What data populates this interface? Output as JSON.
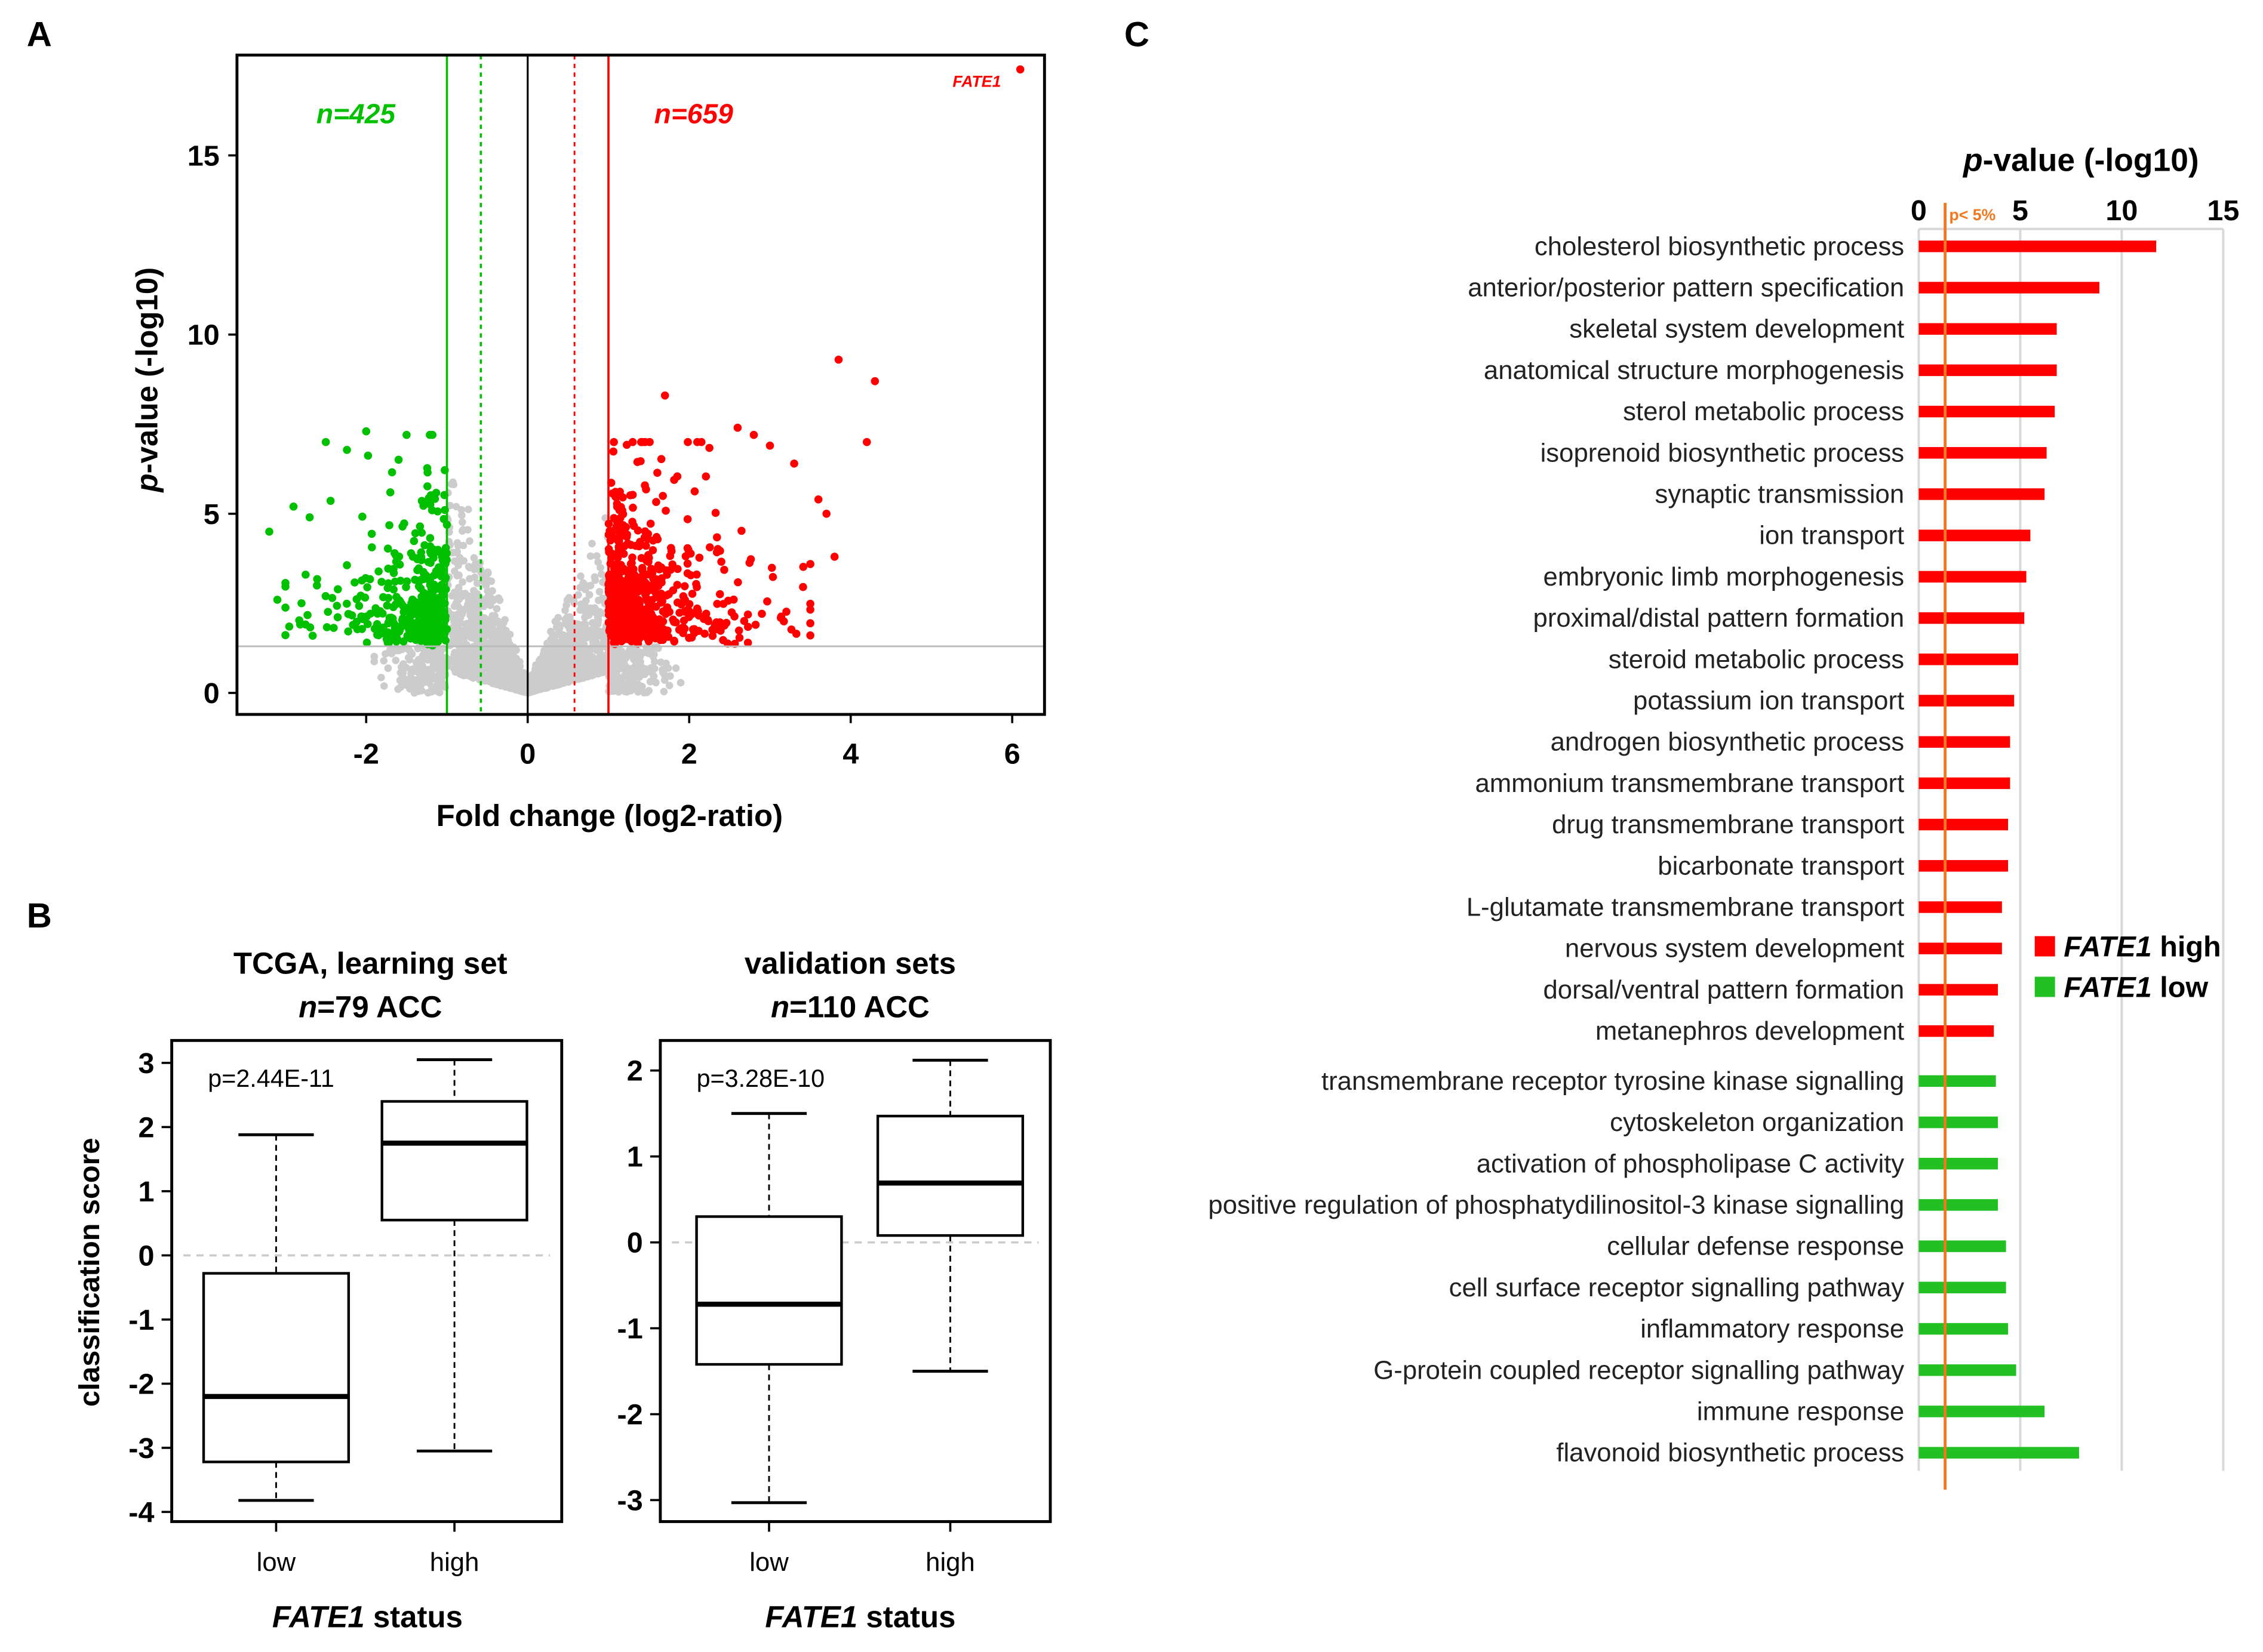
{
  "panels": {
    "a": "A",
    "b": "B",
    "c": "C"
  },
  "chart_data": [
    {
      "type": "scatter",
      "id": "volcano",
      "xlabel": "Fold change (log2-ratio)",
      "ylabel_italic": "p",
      "ylabel_rest": "-value (-log10)",
      "xlim": [
        -3.6,
        6.4
      ],
      "ylim": [
        -0.6,
        17.8
      ],
      "xticks": [
        -2,
        0,
        2,
        4,
        6
      ],
      "yticks": [
        0,
        5,
        10,
        15
      ],
      "thresholds": {
        "fc_solid": 1,
        "fc_dotted": 0.58,
        "pvalue_line": 1.3
      },
      "down_label": "n=425",
      "up_label": "n=659",
      "n_down": 425,
      "n_up": 659,
      "highlight": {
        "label": "FATE1",
        "x": 6.1,
        "y": 17.4
      },
      "outliers_up": [
        [
          3.85,
          9.3
        ],
        [
          4.3,
          8.7
        ],
        [
          1.7,
          8.3
        ],
        [
          4.2,
          7.0
        ],
        [
          2.6,
          7.4
        ],
        [
          2.8,
          7.2
        ],
        [
          3.8,
          3.8
        ],
        [
          3.6,
          5.4
        ],
        [
          3.7,
          5.0
        ],
        [
          3.3,
          6.4
        ],
        [
          2.1,
          7.0
        ],
        [
          1.3,
          7.0
        ],
        [
          3.0,
          6.9
        ]
      ],
      "outliers_down": [
        [
          -2.0,
          7.3
        ],
        [
          -2.5,
          7.0
        ],
        [
          -1.5,
          7.2
        ],
        [
          -3.2,
          4.5
        ],
        [
          -3.1,
          2.6
        ],
        [
          -2.9,
          5.2
        ],
        [
          -2.7,
          4.9
        ],
        [
          -2.75,
          3.3
        ]
      ],
      "colors": {
        "down": "#00c000",
        "up": "#ff0000",
        "ns": "#cccccc"
      }
    },
    {
      "type": "box",
      "id": "tcga",
      "title1": "TCGA, learning set",
      "title2_italic": "n",
      "title2_rest": "=79 ACC",
      "pvalue": "p=2.44E-11",
      "ylabel": "classification score",
      "xlabel_italic": "FATE1",
      "xlabel_rest": " status",
      "ylim": [
        -4.15,
        3.35
      ],
      "yticks": [
        3,
        2,
        1,
        0,
        -1,
        -2,
        -3,
        -4
      ],
      "groups": [
        {
          "name": "low",
          "whisker_low": -3.82,
          "q1": -3.22,
          "median": -2.2,
          "q3": -0.28,
          "whisker_high": 1.88
        },
        {
          "name": "high",
          "whisker_low": -3.05,
          "q1": 0.55,
          "median": 1.75,
          "q3": 2.4,
          "whisker_high": 3.05
        }
      ]
    },
    {
      "type": "box",
      "id": "validation",
      "title1": "validation sets",
      "title2_italic": "n",
      "title2_rest": "=110 ACC",
      "pvalue": "p=3.28E-10",
      "xlabel_italic": "FATE1",
      "xlabel_rest": " status",
      "ylim": [
        -3.25,
        2.35
      ],
      "yticks": [
        2,
        1,
        0,
        -1,
        -2,
        -3
      ],
      "groups": [
        {
          "name": "low",
          "whisker_low": -3.03,
          "q1": -1.42,
          "median": -0.72,
          "q3": 0.3,
          "whisker_high": 1.5
        },
        {
          "name": "high",
          "whisker_low": -1.5,
          "q1": 0.08,
          "median": 0.69,
          "q3": 1.47,
          "whisker_high": 2.12
        }
      ]
    },
    {
      "type": "bar",
      "id": "go-enrichment",
      "orientation": "horizontal",
      "title_italic": "p",
      "title_rest": "-value (-log10)",
      "xlim": [
        0,
        15
      ],
      "xticks": [
        0,
        5,
        10,
        15
      ],
      "threshold": {
        "value": 1.3,
        "label": "p< 5%",
        "color": "#f07820"
      },
      "legend": [
        {
          "italic": "FATE1",
          "rest": " high",
          "color": "#ff0000"
        },
        {
          "italic": "FATE1",
          "rest": " low",
          "color": "#22c022"
        }
      ],
      "series": [
        {
          "name": "FATE1 high",
          "color": "#ff0000",
          "categories": [
            "cholesterol biosynthetic process",
            "anterior/posterior pattern specification",
            "skeletal system development",
            "anatomical structure morphogenesis",
            "sterol metabolic process",
            "isoprenoid biosynthetic process",
            "synaptic transmission",
            "ion transport",
            "embryonic limb morphogenesis",
            "proximal/distal pattern formation",
            "steroid metabolic process",
            "potassium ion transport",
            "androgen biosynthetic process",
            "ammonium transmembrane transport",
            "drug transmembrane transport",
            "bicarbonate transport",
            "L-glutamate transmembrane transport",
            "nervous system development",
            "dorsal/ventral pattern formation",
            "metanephros development"
          ],
          "values": [
            11.7,
            8.9,
            6.8,
            6.8,
            6.7,
            6.3,
            6.2,
            5.5,
            5.3,
            5.2,
            4.9,
            4.7,
            4.5,
            4.5,
            4.4,
            4.4,
            4.1,
            4.1,
            3.9,
            3.7
          ]
        },
        {
          "name": "FATE1 low",
          "color": "#22c022",
          "categories": [
            "transmembrane receptor tyrosine kinase signalling",
            "cytoskeleton organization",
            "activation of phospholipase C activity",
            "positive regulation of phosphatydilinositol-3 kinase signalling",
            "cellular defense response",
            "cell surface receptor signalling pathway",
            "inflammatory response",
            "G-protein coupled receptor signalling pathway",
            "immune response",
            "flavonoid biosynthetic process"
          ],
          "values": [
            3.8,
            3.9,
            3.9,
            3.9,
            4.3,
            4.3,
            4.4,
            4.8,
            6.2,
            7.9
          ]
        }
      ]
    }
  ]
}
